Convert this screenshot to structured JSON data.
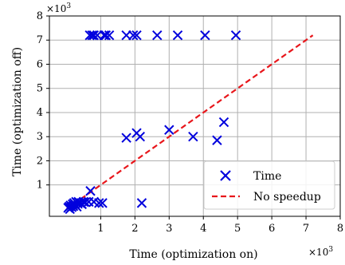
{
  "chart_data": {
    "type": "scatter",
    "xlabel": "Time (optimization on)",
    "ylabel": "Time (optimization off)",
    "x_multiplier": "×10",
    "y_multiplier": "×10",
    "multiplier_exponent": "3",
    "xlim": [
      -0.5,
      8
    ],
    "ylim": [
      -0.3,
      8
    ],
    "x_ticks": [
      1,
      2,
      3,
      4,
      5,
      6,
      7,
      8
    ],
    "y_ticks": [
      1,
      2,
      3,
      4,
      5,
      6,
      7,
      8
    ],
    "grid": true,
    "legend_position": "lower-right",
    "series": [
      {
        "name": "Time",
        "marker": "x",
        "color": "#0000dd",
        "points": [
          [
            0.68,
            7.2
          ],
          [
            0.75,
            7.2
          ],
          [
            0.8,
            7.2
          ],
          [
            0.9,
            7.2
          ],
          [
            1.1,
            7.2
          ],
          [
            1.15,
            7.2
          ],
          [
            1.25,
            7.2
          ],
          [
            1.75,
            7.2
          ],
          [
            1.95,
            7.2
          ],
          [
            2.05,
            7.2
          ],
          [
            2.65,
            7.2
          ],
          [
            3.25,
            7.2
          ],
          [
            4.05,
            7.2
          ],
          [
            4.95,
            7.2
          ],
          [
            4.6,
            3.6
          ],
          [
            3.0,
            3.28
          ],
          [
            2.05,
            3.15
          ],
          [
            1.75,
            2.95
          ],
          [
            2.15,
            3.0
          ],
          [
            3.7,
            3.0
          ],
          [
            4.4,
            2.85
          ],
          [
            0.7,
            0.75
          ],
          [
            2.2,
            0.25
          ],
          [
            0.05,
            0.05
          ],
          [
            0.08,
            0.1
          ],
          [
            0.1,
            0.0
          ],
          [
            0.12,
            0.15
          ],
          [
            0.15,
            0.08
          ],
          [
            0.18,
            0.2
          ],
          [
            0.2,
            0.12
          ],
          [
            0.22,
            0.25
          ],
          [
            0.25,
            0.18
          ],
          [
            0.28,
            0.3
          ],
          [
            0.3,
            0.1
          ],
          [
            0.33,
            0.22
          ],
          [
            0.35,
            0.3
          ],
          [
            0.4,
            0.25
          ],
          [
            0.45,
            0.2
          ],
          [
            0.5,
            0.3
          ],
          [
            0.55,
            0.28
          ],
          [
            0.65,
            0.3
          ],
          [
            0.8,
            0.3
          ],
          [
            0.95,
            0.25
          ],
          [
            1.05,
            0.25
          ]
        ]
      },
      {
        "name": "No speedup",
        "style": "dashed-line",
        "color": "#e8161b",
        "points": [
          [
            0,
            0
          ],
          [
            7.2,
            7.2
          ]
        ]
      }
    ]
  }
}
